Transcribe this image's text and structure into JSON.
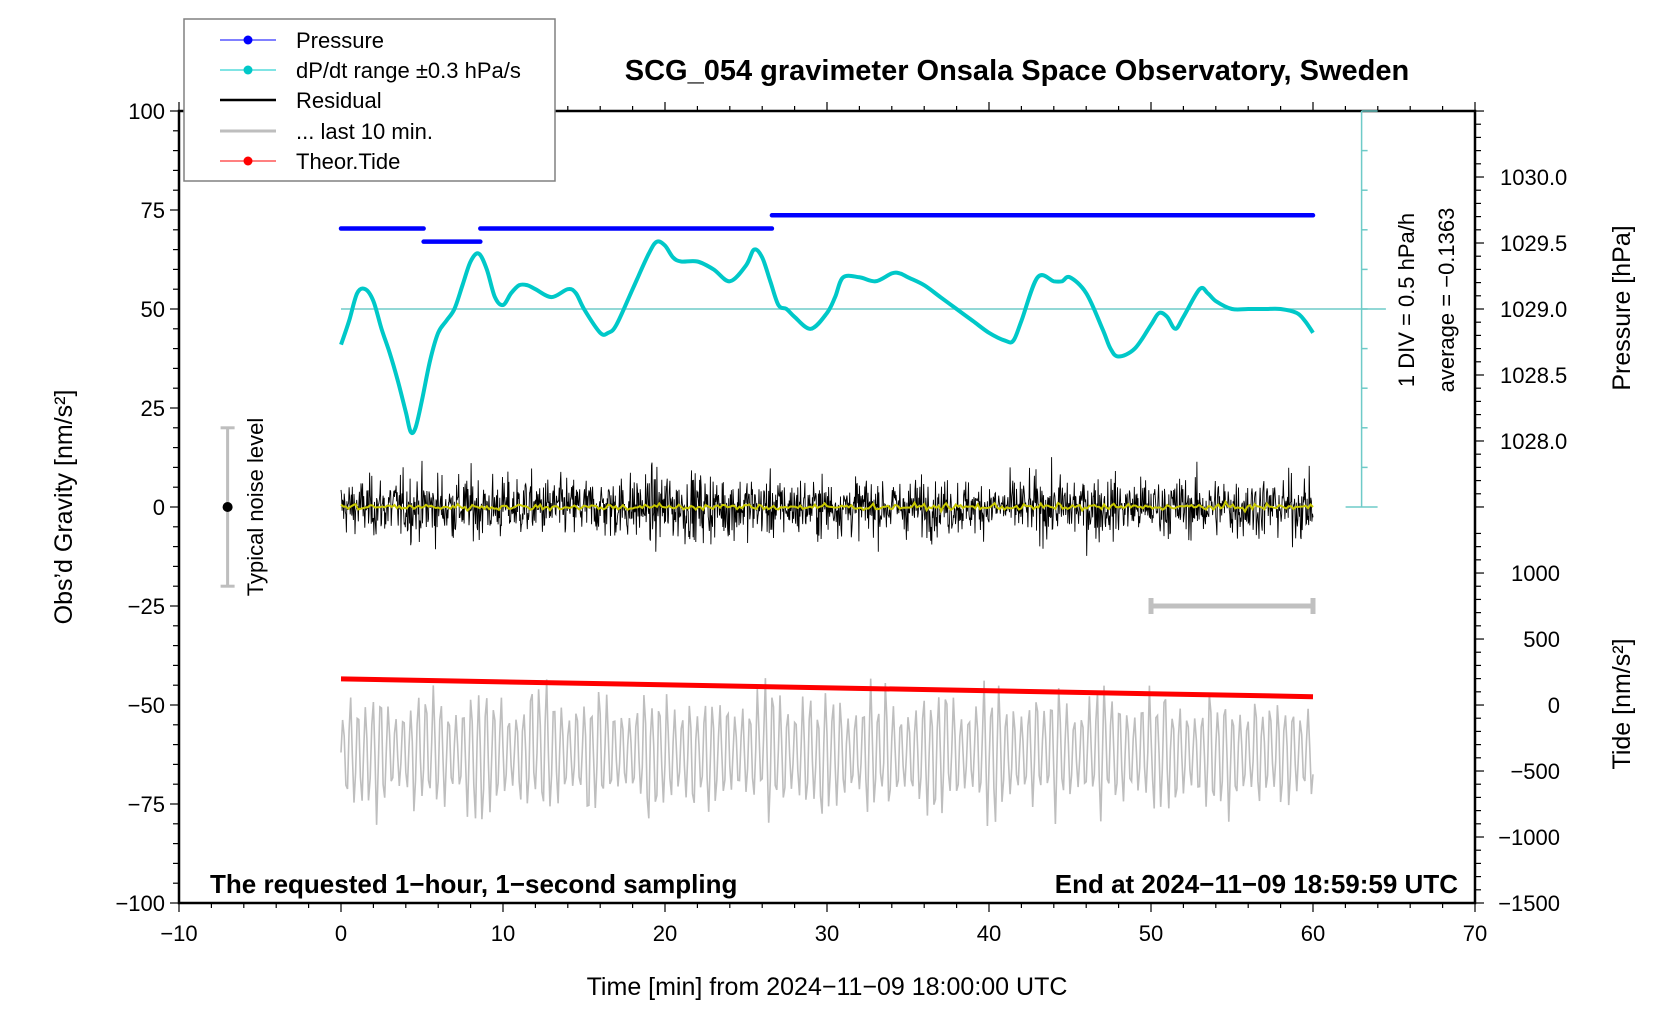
{
  "chart_data": {
    "type": "line",
    "title": "SCG_054 gravimeter Onsala Space Observatory, Sweden",
    "xlabel": "Time [min] from 2024−11−09 18:00:00 UTC",
    "ylabel_left": "Obs’d Gravity [nm/s²]",
    "ylabel_right_top": "Pressure [hPa]",
    "ylabel_right_bottom": "Tide [nm/s²]",
    "xlim": [
      -10,
      70
    ],
    "ylim": [
      -100,
      100
    ],
    "xticks": [
      -10,
      0,
      10,
      20,
      30,
      40,
      50,
      60,
      70
    ],
    "xtick_labels": [
      "−10",
      "0",
      "10",
      "20",
      "30",
      "40",
      "50",
      "60",
      "70"
    ],
    "yticks": [
      100,
      75,
      50,
      25,
      0,
      -25,
      -50,
      -75,
      -100
    ],
    "ytick_labels": [
      "100",
      "75",
      "50",
      "25",
      "0",
      "−25",
      "−50",
      "−75",
      "−100"
    ],
    "pressure_axis": {
      "ticks": [
        1030.0,
        1029.5,
        1029.0,
        1028.5,
        1028.0
      ],
      "tick_labels": [
        "1030.0",
        "1029.5",
        "1029.0",
        "1028.5",
        "1028.0"
      ],
      "ref_value": 1029.0,
      "ref_gravity": 50,
      "gravity_per_hPa": 33.33
    },
    "tide_axis": {
      "ticks": [
        1000,
        500,
        0,
        -500,
        -1000,
        -1500
      ],
      "tick_labels": [
        "1000",
        "500",
        "0",
        "−500",
        "−1000",
        "−1500"
      ],
      "ref_value": -1500,
      "ref_gravity": -100,
      "gravity_per_unit": 0.03333
    },
    "legend": {
      "position": "top-left",
      "entries": [
        {
          "label": "Pressure",
          "color": "#0000ff",
          "marker": true
        },
        {
          "label": "dP/dt range ±0.3 hPa/s",
          "color": "#00c8c8",
          "marker": true
        },
        {
          "label": "Residual",
          "color": "#000000",
          "marker": false
        },
        {
          "label": "... last 10 min.",
          "color": "#bebebe",
          "marker": false
        },
        {
          "label": "Theor.Tide",
          "color": "#ff0000",
          "marker": true
        }
      ]
    },
    "annotations": {
      "left_bottom": "The requested 1−hour, 1−second sampling",
      "right_bottom": "End at 2024−11−09 18:59:59 UTC",
      "noise_label": "Typical noise level",
      "div_label": "1 DIV = 0.5 hPa/h",
      "average_label": "average = −0.1363"
    },
    "noise_bar": {
      "x": -7,
      "center": 0,
      "half_range": 20
    },
    "last10_bar": {
      "x_start": 50,
      "x_end": 60,
      "y": -25
    },
    "dpdt_scale": {
      "x": 63,
      "y_top": 100,
      "y_bottom": 0,
      "reference_y": 50,
      "divisions": 11
    },
    "series": [
      {
        "name": "Pressure",
        "color": "#0000ff",
        "unit": "hPa",
        "segments": [
          {
            "x_start": 0,
            "x_end": 5.1,
            "value": 1029.61
          },
          {
            "x_start": 5.1,
            "x_end": 8.6,
            "value": 1029.51
          },
          {
            "x_start": 8.6,
            "x_end": 26.6,
            "value": 1029.61
          },
          {
            "x_start": 26.6,
            "x_end": 60,
            "value": 1029.71
          }
        ]
      },
      {
        "name": "dP/dt",
        "color": "#00c8c8",
        "unit": "gravity-axis",
        "x": [
          0,
          0.5,
          1,
          1.5,
          2,
          2.5,
          3,
          3.5,
          4,
          4.3,
          4.6,
          5,
          5.5,
          6,
          6.5,
          7,
          7.5,
          8,
          8.5,
          9,
          9.5,
          10,
          10.5,
          11,
          11.5,
          12,
          13,
          14,
          14.5,
          15,
          16,
          16.5,
          17,
          18,
          19,
          19.5,
          20,
          20.5,
          21,
          22,
          23,
          24,
          25,
          25.5,
          26,
          26.5,
          27,
          27.5,
          28,
          29,
          30,
          30.5,
          31,
          32,
          33,
          34,
          34.5,
          35,
          36,
          37,
          38,
          39,
          40,
          41,
          41.5,
          42,
          43,
          44,
          44.5,
          45,
          46,
          47,
          47.5,
          48,
          49,
          50,
          50.5,
          51,
          51.5,
          52,
          53,
          53.5,
          54,
          55,
          56,
          57,
          58,
          59,
          59.5,
          60
        ],
        "values": [
          41,
          47,
          54,
          55,
          52,
          45,
          39,
          32,
          24,
          19,
          20,
          27,
          37,
          44,
          47,
          50,
          56,
          62,
          64,
          60,
          53,
          51,
          54,
          56,
          56,
          55,
          53,
          55,
          54,
          50,
          44,
          44,
          46,
          55,
          64,
          67,
          66,
          63,
          62,
          62,
          60,
          57,
          61,
          65,
          63,
          57,
          51,
          50,
          48,
          45,
          49,
          53,
          58,
          58,
          57,
          59,
          59,
          58,
          56,
          53,
          50,
          47,
          44,
          42,
          42,
          47,
          58,
          57,
          57,
          58,
          54,
          45,
          40,
          38,
          40,
          46,
          49,
          48,
          45,
          48,
          55,
          54,
          52,
          50,
          50,
          50,
          50,
          49,
          47,
          44
        ]
      },
      {
        "name": "Residual",
        "color": "#000000",
        "unit": "nm/s2",
        "envelope_x": [
          0,
          5,
          10,
          15,
          20,
          25,
          30,
          35,
          40,
          45,
          50,
          55,
          60
        ],
        "envelope_amplitude": [
          10,
          13,
          12,
          11,
          14,
          12,
          11,
          11,
          10,
          13,
          11,
          12,
          12
        ],
        "max_value": 29,
        "min_value": -29
      },
      {
        "name": "Residual smoothed",
        "color": "#c8c800",
        "unit": "nm/s2",
        "approx_value": 0
      },
      {
        "name": "... last 10 min.",
        "color": "#bebebe",
        "unit": "gravity-axis",
        "center": -62,
        "amplitude": 12,
        "min_value": -84,
        "max_value": -38
      },
      {
        "name": "Theor.Tide",
        "color": "#ff0000",
        "unit": "nm/s2",
        "x": [
          0,
          60
        ],
        "values": [
          198,
          63
        ]
      }
    ]
  }
}
